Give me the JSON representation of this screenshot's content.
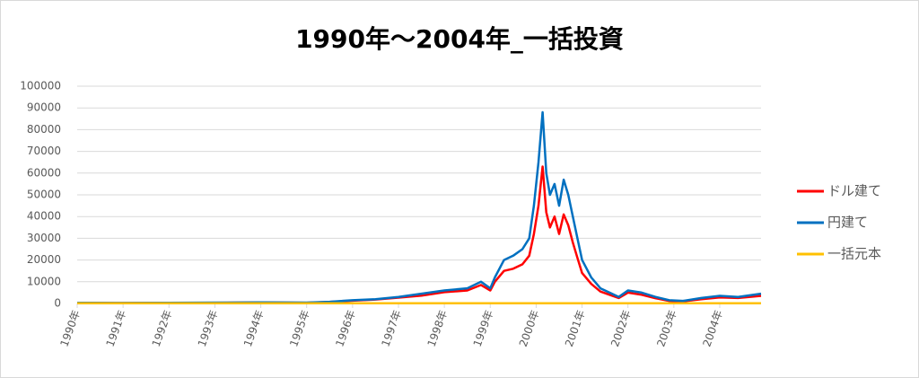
{
  "chart_data": {
    "type": "line",
    "title": "1990年～2004年_一括投資",
    "x": [
      1990,
      1991,
      1992,
      1993,
      1994,
      1995,
      1995.5,
      1996,
      1996.5,
      1997,
      1997.5,
      1998,
      1998.5,
      1998.8,
      1999,
      1999.1,
      1999.3,
      1999.5,
      1999.7,
      1999.85,
      1999.95,
      2000.05,
      2000.14,
      2000.22,
      2000.3,
      2000.4,
      2000.5,
      2000.6,
      2000.7,
      2000.8,
      2000.9,
      2001,
      2001.2,
      2001.4,
      2001.6,
      2001.8,
      2002,
      2002.3,
      2002.6,
      2002.9,
      2003.2,
      2003.6,
      2004,
      2004.4,
      2004.9
    ],
    "series": [
      {
        "name": "ドル建て",
        "color": "#ff0000",
        "values": [
          300,
          200,
          300,
          350,
          450,
          350,
          700,
          1300,
          1800,
          2700,
          3600,
          5200,
          6000,
          8500,
          6000,
          10000,
          15000,
          16000,
          18000,
          22000,
          32000,
          45000,
          63000,
          42000,
          35000,
          40000,
          32000,
          41000,
          36000,
          28000,
          21000,
          14000,
          9000,
          5500,
          4000,
          2500,
          5000,
          4000,
          2400,
          1200,
          1000,
          2000,
          2800,
          2500,
          3500
        ]
      },
      {
        "name": "円建て",
        "color": "#0070c0",
        "values": [
          300,
          250,
          350,
          400,
          500,
          400,
          800,
          1500,
          2000,
          3000,
          4500,
          6000,
          7000,
          10000,
          7000,
          12000,
          20000,
          22000,
          25000,
          30000,
          45000,
          65000,
          88000,
          60000,
          50000,
          55000,
          45000,
          57000,
          50000,
          40000,
          30000,
          20000,
          12000,
          7000,
          5000,
          3000,
          6000,
          5000,
          3000,
          1500,
          1200,
          2500,
          3500,
          3000,
          4500
        ]
      },
      {
        "name": "一括元本",
        "color": "#ffc000",
        "values": [
          100,
          100,
          100,
          100,
          100,
          100,
          100,
          100,
          100,
          100,
          100,
          100,
          100,
          100,
          100,
          100,
          100,
          100,
          100,
          100,
          100,
          100,
          100,
          100,
          100,
          100,
          100,
          100,
          100,
          100,
          100,
          100,
          100,
          100,
          100,
          100,
          100,
          100,
          100,
          100,
          100,
          100,
          100,
          100,
          100
        ]
      }
    ],
    "xlim": [
      1990,
      2004.9
    ],
    "xticks": [
      {
        "value": 1990,
        "label": "1990年"
      },
      {
        "value": 1991,
        "label": "1991年"
      },
      {
        "value": 1992,
        "label": "1992年"
      },
      {
        "value": 1993,
        "label": "1993年"
      },
      {
        "value": 1994,
        "label": "1994年"
      },
      {
        "value": 1995,
        "label": "1995年"
      },
      {
        "value": 1996,
        "label": "1996年"
      },
      {
        "value": 1997,
        "label": "1997年"
      },
      {
        "value": 1998,
        "label": "1998年"
      },
      {
        "value": 1999,
        "label": "1999年"
      },
      {
        "value": 2000,
        "label": "2000年"
      },
      {
        "value": 2001,
        "label": "2001年"
      },
      {
        "value": 2002,
        "label": "2002年"
      },
      {
        "value": 2003,
        "label": "2003年"
      },
      {
        "value": 2004,
        "label": "2004年"
      }
    ],
    "ylim": [
      0,
      100000
    ],
    "yticks": [
      0,
      10000,
      20000,
      30000,
      40000,
      50000,
      60000,
      70000,
      80000,
      90000,
      100000
    ],
    "grid": true,
    "legend": "right"
  }
}
